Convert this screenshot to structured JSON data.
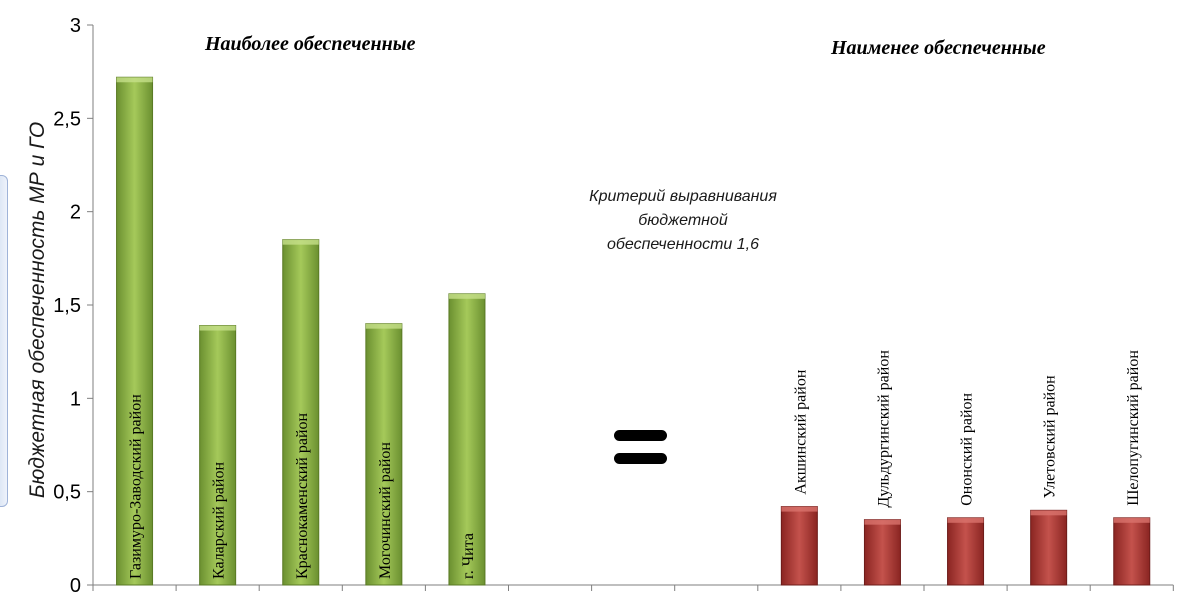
{
  "chart_data": {
    "type": "bar",
    "title": "",
    "ylabel": "Бюджетная обеспеченность МР и ГО",
    "xlabel": "",
    "ylim": [
      0,
      3
    ],
    "yticks": [
      {
        "value": 0,
        "label": "0"
      },
      {
        "value": 0.5,
        "label": "0,5"
      },
      {
        "value": 1,
        "label": "1"
      },
      {
        "value": 1.5,
        "label": "1,5"
      },
      {
        "value": 2,
        "label": "2"
      },
      {
        "value": 2.5,
        "label": "2,5"
      },
      {
        "value": 3,
        "label": "3"
      }
    ],
    "grid": false,
    "category_slots": 13,
    "categories": [
      "Газимуро-Заводский район",
      "Каларский район",
      "Краснокаменский район",
      "Могочинский район",
      "г. Чита",
      "",
      "",
      "",
      "Акшинский район",
      "Дульдургинский район",
      "Ононский район",
      "Улетовский район",
      "Шелопугинский район"
    ],
    "values": [
      2.72,
      1.39,
      1.85,
      1.4,
      1.56,
      null,
      null,
      null,
      0.42,
      0.35,
      0.36,
      0.4,
      0.36
    ],
    "bar_colors": [
      "#7da43a",
      "#7da43a",
      "#7da43a",
      "#7da43a",
      "#7da43a",
      null,
      null,
      null,
      "#a4332e",
      "#a4332e",
      "#a4332e",
      "#a4332e",
      "#a4332e"
    ],
    "annotations": {
      "most_title": "Наиболее обеспеченные",
      "least_title": "Наименее обеспеченные",
      "criterion_lines": [
        "Критерий выравнивания",
        "бюджетной",
        "обеспеченности 1,6"
      ]
    }
  }
}
